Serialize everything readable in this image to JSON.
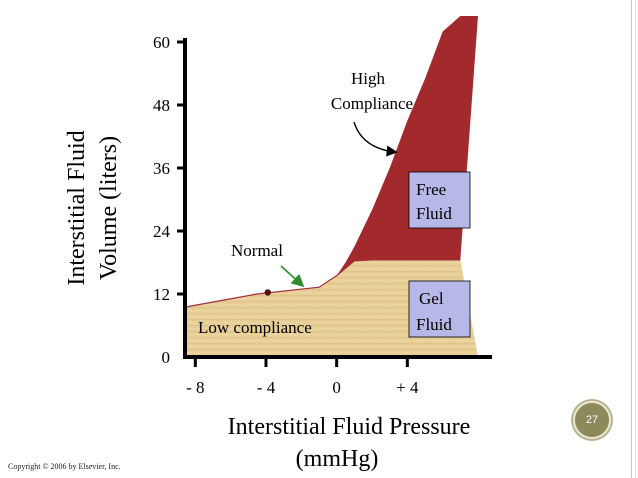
{
  "slide": {
    "number": "27",
    "copyright": "Copyright © 2006 by Elsevier, Inc."
  },
  "colors": {
    "gel_fill": "#e8cf97",
    "gel_line": "#a0303a",
    "free_fill": "#a32a2c",
    "box_fill": "#b6b8e8",
    "axis": "#000000"
  },
  "chart_data": {
    "type": "area",
    "xlabel_line1": "Interstitial Fluid Pressure",
    "xlabel_line2": "(mmHg)",
    "ylabel_line1": "Interstitial Fluid",
    "ylabel_line2": "Volume (liters)",
    "x_ticks": [
      "- 8",
      "- 4",
      "0",
      "+ 4"
    ],
    "x_tick_values": [
      -8,
      -4,
      0,
      4
    ],
    "y_ticks": [
      "0",
      "12",
      "24",
      "36",
      "48",
      "60"
    ],
    "y_tick_values": [
      0,
      12,
      24,
      36,
      48,
      60
    ],
    "xlim": [
      -10,
      8
    ],
    "ylim": [
      0,
      60
    ],
    "series": [
      {
        "name": "Gel Fluid",
        "x": [
          -10,
          -4.5,
          -1,
          0,
          1,
          2,
          3,
          4,
          5,
          6,
          7
        ],
        "y": [
          9.5,
          12,
          13.3,
          15.5,
          18.3,
          18.5,
          18.5,
          18.5,
          18.5,
          18.5,
          18.5
        ]
      },
      {
        "name": "Free Fluid",
        "x": [
          0,
          0.5,
          1,
          2,
          3,
          4,
          5,
          6,
          7
        ],
        "y": [
          15.5,
          18,
          21,
          28,
          36,
          45,
          53,
          62,
          67
        ]
      }
    ],
    "normal_point": {
      "x": -3.9,
      "y": 12.3
    },
    "annotations": {
      "normal": "Normal",
      "high_compliance_1": "High",
      "high_compliance_2": "Compliance",
      "low_compliance": "Low compliance",
      "free_fluid_1": "Free",
      "free_fluid_2": "Fluid",
      "gel_fluid_1": "Gel",
      "gel_fluid_2": "Fluid"
    }
  }
}
